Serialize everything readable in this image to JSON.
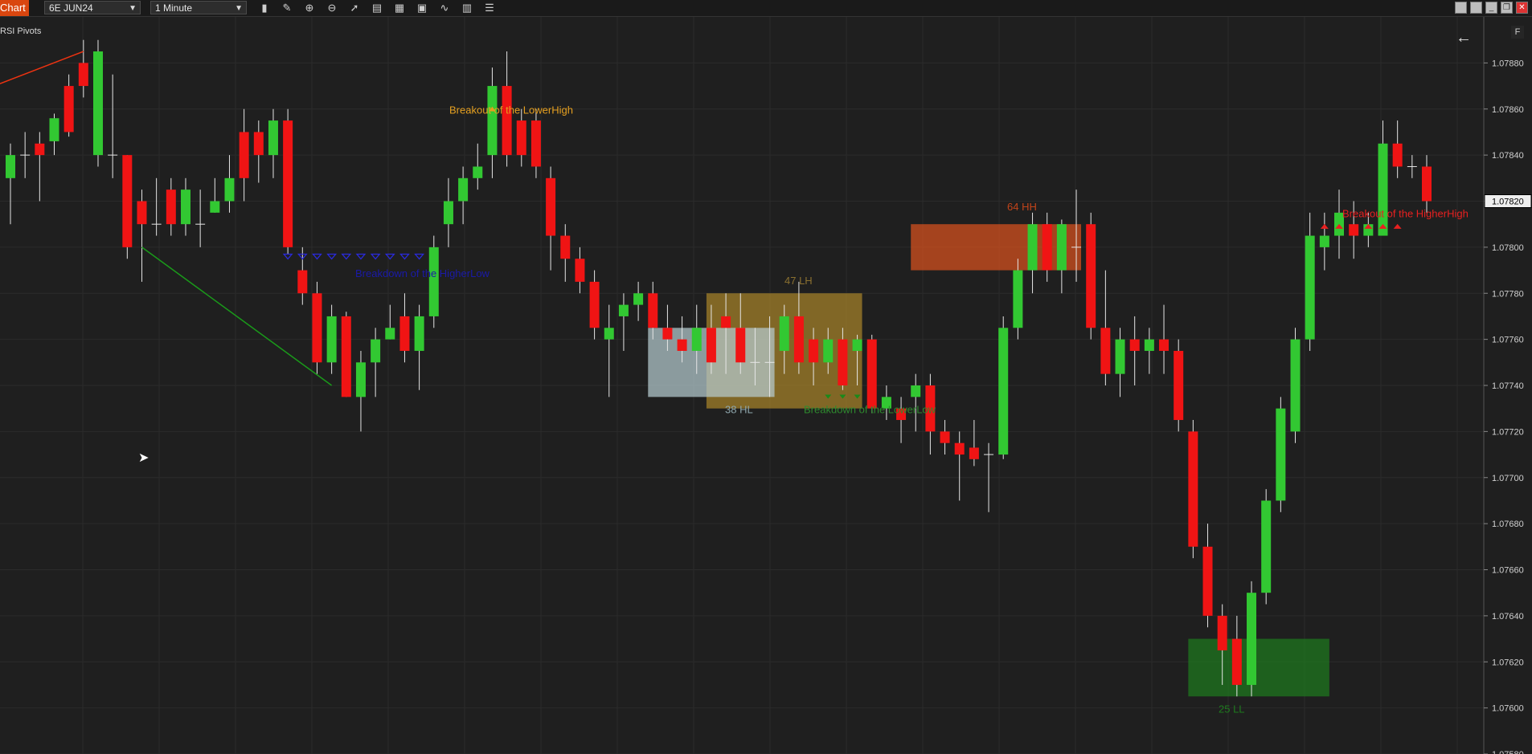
{
  "toolbar": {
    "chart_tab": "Chart",
    "instrument": "6E JUN24",
    "interval": "1 Minute",
    "icons": [
      "bars-icon",
      "pencil-icon",
      "zoom-in-icon",
      "zoom-out-icon",
      "pointer-icon",
      "properties-icon",
      "template-icon",
      "strategy-icon",
      "indicator-icon",
      "data-box-icon",
      "list-icon"
    ]
  },
  "indicator_name": "RSI Pivots",
  "f_button": "F",
  "colors": {
    "up": "#32c832",
    "down": "#f01414",
    "bg": "#1f1f1f",
    "grid": "#2b2b2b",
    "axis_text": "#d0d0d0"
  },
  "chart_data": {
    "type": "candlestick",
    "instrument": "6E JUN24",
    "ylim": [
      1.0758,
      1.079
    ],
    "y_ticks": [
      "1.07880",
      "1.07860",
      "1.07840",
      "1.07820",
      "1.07800",
      "1.07780",
      "1.07760",
      "1.07740",
      "1.07720",
      "1.07700",
      "1.07680",
      "1.07660",
      "1.07640",
      "1.07620",
      "1.07600",
      "1.07580"
    ],
    "current_price": "1.07820",
    "candles": [
      [
        1.0783,
        1.0784,
        1.07845,
        1.0781
      ],
      [
        1.0784,
        1.0784,
        1.0785,
        1.0783
      ],
      [
        1.07845,
        1.0784,
        1.0785,
        1.0782
      ],
      [
        1.07846,
        1.07856,
        1.07858,
        1.0784
      ],
      [
        1.0787,
        1.0785,
        1.07875,
        1.07848
      ],
      [
        1.0788,
        1.0787,
        1.0789,
        1.07865
      ],
      [
        1.0784,
        1.07885,
        1.0789,
        1.07835
      ],
      [
        1.0784,
        1.0784,
        1.07875,
        1.0783
      ],
      [
        1.0784,
        1.078,
        1.0784,
        1.07795
      ],
      [
        1.0782,
        1.0781,
        1.07825,
        1.07785
      ],
      [
        1.0781,
        1.0781,
        1.0783,
        1.07805
      ],
      [
        1.07825,
        1.0781,
        1.0783,
        1.07805
      ],
      [
        1.0781,
        1.07825,
        1.0783,
        1.07805
      ],
      [
        1.0781,
        1.0781,
        1.07825,
        1.078
      ],
      [
        1.07815,
        1.0782,
        1.0783,
        1.07815
      ],
      [
        1.0782,
        1.0783,
        1.0784,
        1.07815
      ],
      [
        1.0785,
        1.0783,
        1.0786,
        1.0782
      ],
      [
        1.0785,
        1.0784,
        1.07855,
        1.07828
      ],
      [
        1.0784,
        1.07855,
        1.0786,
        1.0783
      ],
      [
        1.07855,
        1.078,
        1.0786,
        1.07797
      ],
      [
        1.0779,
        1.0778,
        1.078,
        1.07775
      ],
      [
        1.0778,
        1.0775,
        1.07785,
        1.07745
      ],
      [
        1.0775,
        1.0777,
        1.07775,
        1.07745
      ],
      [
        1.0777,
        1.07735,
        1.07772,
        1.07735
      ],
      [
        1.07735,
        1.0775,
        1.07755,
        1.0772
      ],
      [
        1.0775,
        1.0776,
        1.07765,
        1.07735
      ],
      [
        1.0776,
        1.07765,
        1.07775,
        1.0776
      ],
      [
        1.0777,
        1.07755,
        1.0778,
        1.0775
      ],
      [
        1.07755,
        1.0777,
        1.07775,
        1.07738
      ],
      [
        1.0777,
        1.078,
        1.07805,
        1.07765
      ],
      [
        1.0781,
        1.0782,
        1.0783,
        1.078
      ],
      [
        1.0782,
        1.0783,
        1.07835,
        1.0781
      ],
      [
        1.0783,
        1.07835,
        1.07845,
        1.07825
      ],
      [
        1.0784,
        1.0787,
        1.07878,
        1.0783
      ],
      [
        1.0787,
        1.0784,
        1.07885,
        1.07835
      ],
      [
        1.07855,
        1.0784,
        1.0786,
        1.07835
      ],
      [
        1.07855,
        1.07835,
        1.0786,
        1.0783
      ],
      [
        1.0783,
        1.07805,
        1.07835,
        1.0779
      ],
      [
        1.07805,
        1.07795,
        1.0781,
        1.07785
      ],
      [
        1.07795,
        1.07785,
        1.078,
        1.0778
      ],
      [
        1.07785,
        1.07765,
        1.0779,
        1.0776
      ],
      [
        1.0776,
        1.07765,
        1.07775,
        1.07735
      ],
      [
        1.0777,
        1.07775,
        1.0778,
        1.07755
      ],
      [
        1.07775,
        1.0778,
        1.07785,
        1.07768
      ],
      [
        1.0778,
        1.07765,
        1.07785,
        1.0776
      ],
      [
        1.07765,
        1.0776,
        1.07775,
        1.07755
      ],
      [
        1.0776,
        1.07755,
        1.0777,
        1.0775
      ],
      [
        1.07755,
        1.07765,
        1.07775,
        1.07745
      ],
      [
        1.07765,
        1.0775,
        1.07775,
        1.07745
      ],
      [
        1.0777,
        1.07765,
        1.0778,
        1.07745
      ],
      [
        1.07765,
        1.0775,
        1.0778,
        1.07745
      ],
      [
        1.0775,
        1.0775,
        1.07765,
        1.0774
      ],
      [
        1.0775,
        1.0775,
        1.0777,
        1.07735
      ],
      [
        1.07755,
        1.0777,
        1.07775,
        1.07745
      ],
      [
        1.0777,
        1.0775,
        1.07785,
        1.07745
      ],
      [
        1.0776,
        1.0775,
        1.07765,
        1.0774
      ],
      [
        1.0775,
        1.0776,
        1.07765,
        1.07745
      ],
      [
        1.0776,
        1.0774,
        1.07765,
        1.07738
      ],
      [
        1.07755,
        1.0776,
        1.07762,
        1.0774
      ],
      [
        1.0776,
        1.0773,
        1.07762,
        1.07728
      ],
      [
        1.0773,
        1.07735,
        1.0774,
        1.07725
      ],
      [
        1.0773,
        1.07725,
        1.07735,
        1.07715
      ],
      [
        1.07735,
        1.0774,
        1.07745,
        1.0772
      ],
      [
        1.0774,
        1.0772,
        1.07745,
        1.0771
      ],
      [
        1.0772,
        1.07715,
        1.07725,
        1.0771
      ],
      [
        1.07715,
        1.0771,
        1.0772,
        1.0769
      ],
      [
        1.07713,
        1.07708,
        1.07725,
        1.07705
      ],
      [
        1.0771,
        1.0771,
        1.07715,
        1.07685
      ],
      [
        1.0771,
        1.07765,
        1.0777,
        1.07708
      ],
      [
        1.07765,
        1.0779,
        1.07795,
        1.0776
      ],
      [
        1.0779,
        1.0781,
        1.07815,
        1.0778
      ],
      [
        1.0781,
        1.0779,
        1.07815,
        1.07785
      ],
      [
        1.0779,
        1.0781,
        1.07812,
        1.0778
      ],
      [
        1.078,
        1.078,
        1.07825,
        1.07785
      ],
      [
        1.0781,
        1.07765,
        1.07815,
        1.0776
      ],
      [
        1.07765,
        1.07745,
        1.0779,
        1.0774
      ],
      [
        1.07745,
        1.0776,
        1.07765,
        1.07735
      ],
      [
        1.0776,
        1.07755,
        1.0777,
        1.0774
      ],
      [
        1.07755,
        1.0776,
        1.07765,
        1.07745
      ],
      [
        1.0776,
        1.07755,
        1.07775,
        1.07745
      ],
      [
        1.07755,
        1.07725,
        1.0776,
        1.0772
      ],
      [
        1.0772,
        1.0767,
        1.07725,
        1.07665
      ],
      [
        1.0767,
        1.0764,
        1.0768,
        1.07635
      ],
      [
        1.0764,
        1.07625,
        1.07645,
        1.0761
      ],
      [
        1.0763,
        1.0761,
        1.0764,
        1.07605
      ],
      [
        1.0761,
        1.0765,
        1.07655,
        1.07605
      ],
      [
        1.0765,
        1.0769,
        1.07695,
        1.07645
      ],
      [
        1.0769,
        1.0773,
        1.07735,
        1.07685
      ],
      [
        1.0772,
        1.0776,
        1.07765,
        1.07715
      ],
      [
        1.0776,
        1.07805,
        1.07815,
        1.07755
      ],
      [
        1.078,
        1.07805,
        1.07815,
        1.0779
      ],
      [
        1.07805,
        1.07815,
        1.07825,
        1.07795
      ],
      [
        1.0781,
        1.07805,
        1.0782,
        1.07795
      ],
      [
        1.07805,
        1.0781,
        1.07815,
        1.078
      ],
      [
        1.07805,
        1.07845,
        1.07855,
        1.07805
      ],
      [
        1.07845,
        1.07835,
        1.07855,
        1.0783
      ],
      [
        1.07835,
        1.07835,
        1.0784,
        1.0783
      ],
      [
        1.07835,
        1.0782,
        1.0784,
        1.07815
      ]
    ],
    "zones": [
      {
        "label": "64 HH",
        "from": 62,
        "to": 73,
        "top": 1.0781,
        "bottom": 1.0779,
        "color": "#d9521f"
      },
      {
        "label": "47 LH",
        "from": 48,
        "to": 58,
        "top": 1.0778,
        "bottom": 1.0773,
        "color": "#a8842a"
      },
      {
        "label": "38 HL",
        "from": 44,
        "to": 52,
        "top": 1.07765,
        "bottom": 1.07735,
        "color": "#b5ccd0"
      },
      {
        "label": "25 LL",
        "from": 81,
        "to": 90,
        "top": 1.0763,
        "bottom": 1.07605,
        "color": "#1e7a1e"
      }
    ],
    "annotations": [
      {
        "text": "Breakout of the LowerHigh",
        "color": "#e6a020"
      },
      {
        "text": "Breakdown of the HigherLow",
        "color": "#1a1aa8"
      },
      {
        "text": "Breakdown of the LowerLow",
        "color": "#2e8b2e"
      },
      {
        "text": "Breakout of the HigherHigh",
        "color": "#e82020"
      }
    ],
    "grid": true
  }
}
